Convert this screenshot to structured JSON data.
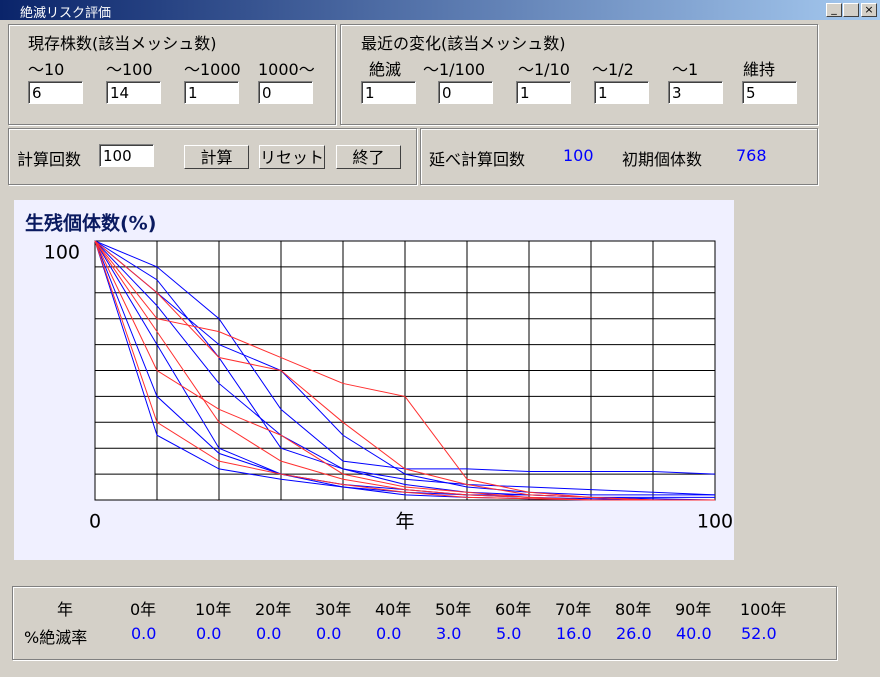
{
  "window": {
    "title": "絶滅リスク評価"
  },
  "existing": {
    "title": "現存株数(該当メッシュ数)",
    "labels": [
      "〜10",
      "〜100",
      "〜1000",
      "1000〜"
    ],
    "fields": [
      "6",
      "14",
      "1",
      "0"
    ]
  },
  "recent": {
    "title": "最近の変化(該当メッシュ数)",
    "labels": [
      "絶滅",
      "〜1/100",
      "〜1/10",
      "〜1/2",
      "〜1",
      "維持"
    ],
    "fields": [
      "1",
      "0",
      "1",
      "1",
      "3",
      "5"
    ]
  },
  "control": {
    "label": "計算回数",
    "field": "100",
    "buttons": [
      "計算",
      "リセット",
      "終了"
    ]
  },
  "summary": {
    "total_label": "延べ計算回数",
    "total": "100",
    "initial_label": "初期個体数",
    "initial": "768"
  },
  "chart_data": {
    "type": "line",
    "title": "生残個体数(%)",
    "xlabel": "年",
    "x": [
      0,
      10,
      20,
      30,
      40,
      50,
      60,
      70,
      80,
      90,
      100
    ],
    "xlim": [
      0,
      100
    ],
    "ylim": [
      0,
      100
    ],
    "xticks": [
      0,
      100
    ],
    "yticks": [
      100
    ],
    "xgrid": [
      10,
      20,
      30,
      40,
      50,
      60,
      70,
      80,
      90,
      100
    ],
    "ygrid": [
      0,
      10,
      20,
      30,
      40,
      50,
      60,
      70,
      80,
      90
    ],
    "series": [
      {
        "color": "#0000ff",
        "values": [
          100,
          60,
          20,
          10,
          5,
          2,
          1,
          0.5,
          0,
          0,
          0
        ]
      },
      {
        "color": "#0000ff",
        "values": [
          100,
          75,
          45,
          25,
          12,
          6,
          3,
          2,
          1,
          0.5,
          0
        ]
      },
      {
        "color": "#0000ff",
        "values": [
          100,
          25,
          12,
          8,
          5,
          3,
          2,
          1,
          0.5,
          0,
          0
        ]
      },
      {
        "color": "#0000ff",
        "values": [
          100,
          85,
          55,
          20,
          12,
          8,
          6,
          5,
          4,
          3,
          2
        ]
      },
      {
        "color": "#0000ff",
        "values": [
          100,
          90,
          70,
          35,
          15,
          12,
          12,
          11,
          11,
          11,
          10
        ]
      },
      {
        "color": "#0000ff",
        "values": [
          100,
          40,
          18,
          10,
          6,
          4,
          2,
          2,
          1,
          1,
          1
        ]
      },
      {
        "color": "#0000ff",
        "values": [
          100,
          80,
          60,
          50,
          25,
          10,
          5,
          3,
          2,
          2,
          2
        ]
      },
      {
        "color": "#ff3030",
        "values": [
          100,
          70,
          65,
          55,
          45,
          40,
          8,
          3,
          1,
          0,
          0
        ]
      },
      {
        "color": "#ff3030",
        "values": [
          100,
          50,
          35,
          25,
          10,
          5,
          3,
          1,
          0,
          0,
          0
        ]
      },
      {
        "color": "#ff3030",
        "values": [
          100,
          65,
          30,
          15,
          8,
          4,
          2,
          1,
          0,
          0,
          0
        ]
      },
      {
        "color": "#ff3030",
        "values": [
          100,
          80,
          55,
          50,
          30,
          12,
          6,
          2,
          1,
          0,
          0
        ]
      },
      {
        "color": "#ff3030",
        "values": [
          100,
          30,
          15,
          10,
          6,
          3,
          1,
          0.5,
          0,
          0,
          0
        ]
      }
    ]
  },
  "table": {
    "header": [
      "年",
      "0年",
      "10年",
      "20年",
      "30年",
      "40年",
      "50年",
      "60年",
      "70年",
      "80年",
      "90年",
      "100年"
    ],
    "rows": [
      [
        "%絶滅率",
        "0.0",
        "0.0",
        "0.0",
        "0.0",
        "0.0",
        "3.0",
        "5.0",
        "16.0",
        "26.0",
        "40.0",
        "52.0"
      ]
    ]
  }
}
